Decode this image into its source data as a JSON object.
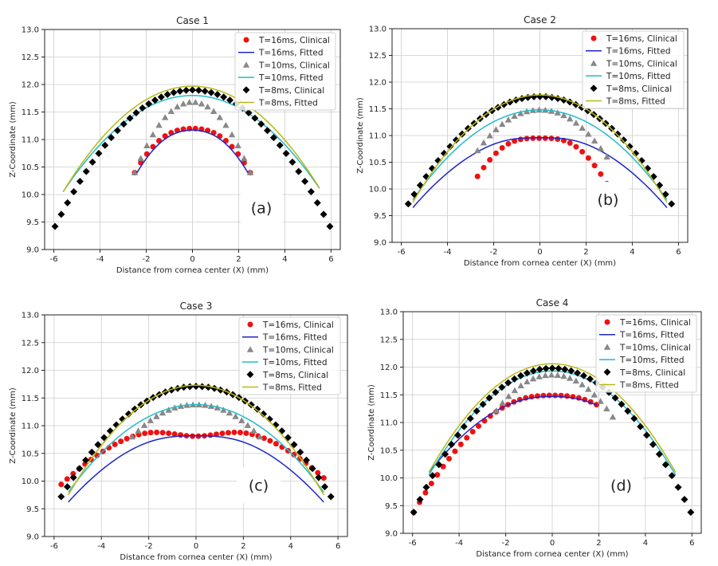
{
  "figure": {
    "panel_labels": [
      "(a)",
      "(b)",
      "(c)",
      "(d)"
    ]
  },
  "colors": {
    "clinical16": "#ee1111",
    "fitted16": "#1f25c8",
    "clinical10": "#888888",
    "fitted10": "#22bcc8",
    "clinical8": "#000000",
    "fitted8": "#b8b818",
    "grid": "#cccccc"
  },
  "legend_entries": [
    {
      "label": "T=16ms, Clinical",
      "kind": "marker",
      "marker": "circle",
      "color_key": "clinical16"
    },
    {
      "label": "T=16ms, Fitted",
      "kind": "line",
      "color_key": "fitted16"
    },
    {
      "label": "T=10ms, Clinical",
      "kind": "marker",
      "marker": "triangle",
      "color_key": "clinical10"
    },
    {
      "label": "T=10ms, Fitted",
      "kind": "line",
      "color_key": "fitted10"
    },
    {
      "label": "T=8ms, Clinical",
      "kind": "marker",
      "marker": "diamond",
      "color_key": "clinical8"
    },
    {
      "label": "T=8ms, Fitted",
      "kind": "line",
      "color_key": "fitted8"
    }
  ],
  "chart_data": [
    {
      "type": "line",
      "title": "Case 1",
      "xlabel": "Distance from cornea center (X) (mm)",
      "ylabel": "Z-Coordinate (mm)",
      "xlim": [
        -6.4,
        6.4
      ],
      "ylim": [
        9.0,
        13.0
      ],
      "xticks": [
        -6,
        -4,
        -2,
        0,
        2,
        4,
        6
      ],
      "yticks": [
        9.0,
        9.5,
        10.0,
        10.5,
        11.0,
        11.5,
        12.0,
        12.5,
        13.0
      ],
      "grid": true,
      "legend_position": "top-right",
      "series": [
        {
          "name": "T=16ms, Clinical",
          "style": "clinical16",
          "profile": {
            "x_start": -2.5,
            "x_end": 2.5,
            "n": 20,
            "top": 11.32,
            "edge": 10.4,
            "dip": 0.12,
            "dip_w": 0.9
          }
        },
        {
          "name": "T=16ms, Fitted",
          "style": "fitted16",
          "profile": {
            "x_start": -2.4,
            "x_end": 2.4,
            "n": 60,
            "top": 11.25,
            "edge": 10.4,
            "dip": 0.08,
            "dip_w": 0.9
          }
        },
        {
          "name": "T=10ms, Clinical",
          "style": "clinical10",
          "profile": {
            "x_start": -2.5,
            "x_end": 2.5,
            "n": 20,
            "top": 11.7,
            "edge": 10.4,
            "dip": 0.02,
            "dip_w": 0.8
          }
        },
        {
          "name": "T=10ms, Fitted",
          "style": "fitted10",
          "profile": {
            "x_start": -5.6,
            "x_end": 5.5,
            "n": 60,
            "top": 11.8,
            "edge": 10.05,
            "dip": 0.0,
            "dip_w": 1.0
          }
        },
        {
          "name": "T=8ms, Clinical",
          "style": "clinical8",
          "profile": {
            "x_start": -5.95,
            "x_end": 5.95,
            "n": 45,
            "top": 11.9,
            "edge": 9.42,
            "dip": 0.0,
            "dip_w": 1.0
          }
        },
        {
          "name": "T=8ms, Fitted",
          "style": "fitted8",
          "profile": {
            "x_start": -5.6,
            "x_end": 5.5,
            "n": 60,
            "top": 11.97,
            "edge": 10.05,
            "dip": 0.0,
            "dip_w": 1.0
          }
        }
      ]
    },
    {
      "type": "line",
      "title": "Case 2",
      "xlabel": "Distance from cornea center (X) (mm)",
      "ylabel": "Z-Coordinate (mm)",
      "xlim": [
        -6.4,
        6.4
      ],
      "ylim": [
        9.0,
        13.0
      ],
      "xticks": [
        -6,
        -4,
        -2,
        0,
        2,
        4,
        6
      ],
      "yticks": [
        9.0,
        9.5,
        10.0,
        10.5,
        11.0,
        11.5,
        12.0,
        12.5,
        13.0
      ],
      "grid": true,
      "legend_position": "top-right",
      "series": [
        {
          "name": "T=16ms, Clinical",
          "style": "clinical16",
          "profile": {
            "x_start": -2.7,
            "x_end": 2.9,
            "n": 22,
            "top": 11.13,
            "edge": 10.1,
            "dip": 0.18,
            "dip_w": 0.9
          }
        },
        {
          "name": "T=16ms, Fitted",
          "style": "fitted16",
          "profile": {
            "x_start": -5.5,
            "x_end": 5.5,
            "n": 60,
            "top": 11.03,
            "edge": 9.65,
            "dip": 0.07,
            "dip_w": 1.0
          }
        },
        {
          "name": "T=10ms, Clinical",
          "style": "clinical10",
          "profile": {
            "x_start": -2.7,
            "x_end": 2.9,
            "n": 22,
            "top": 11.5,
            "edge": 10.6,
            "dip": 0.02,
            "dip_w": 0.8
          }
        },
        {
          "name": "T=10ms, Fitted",
          "style": "fitted10",
          "profile": {
            "x_start": -5.5,
            "x_end": 5.5,
            "n": 60,
            "top": 11.48,
            "edge": 9.8,
            "dip": 0.0,
            "dip_w": 1.0
          }
        },
        {
          "name": "T=8ms, Clinical",
          "style": "clinical8",
          "profile": {
            "x_start": -5.7,
            "x_end": 5.7,
            "n": 45,
            "top": 11.73,
            "edge": 9.72,
            "dip": 0.0,
            "dip_w": 1.0
          }
        },
        {
          "name": "T=8ms, Fitted",
          "style": "fitted8",
          "profile": {
            "x_start": -5.5,
            "x_end": 5.5,
            "n": 60,
            "top": 11.76,
            "edge": 9.75,
            "dip": 0.0,
            "dip_w": 1.0
          }
        }
      ]
    },
    {
      "type": "line",
      "title": "Case 3",
      "xlabel": "Distance from cornea center (X) (mm)",
      "ylabel": "Z-Coordinate (mm)",
      "xlim": [
        -6.4,
        6.4
      ],
      "ylim": [
        9.0,
        13.0
      ],
      "xticks": [
        -6,
        -4,
        -2,
        0,
        2,
        4,
        6
      ],
      "yticks": [
        9.0,
        9.5,
        10.0,
        10.5,
        11.0,
        11.5,
        12.0,
        12.5,
        13.0
      ],
      "grid": true,
      "legend_position": "top-right",
      "series": [
        {
          "name": "T=16ms, Clinical",
          "style": "clinical16",
          "profile": {
            "x_start": -5.7,
            "x_end": 5.4,
            "n": 45,
            "top": 11.08,
            "edge": 9.94,
            "dip": 0.27,
            "dip_w": 1.2
          }
        },
        {
          "name": "T=16ms, Fitted",
          "style": "fitted16",
          "profile": {
            "x_start": -5.4,
            "x_end": 5.4,
            "n": 60,
            "top": 10.9,
            "edge": 9.62,
            "dip": 0.08,
            "dip_w": 1.2
          }
        },
        {
          "name": "T=10ms, Clinical",
          "style": "clinical10",
          "profile": {
            "x_start": -2.7,
            "x_end": 2.7,
            "n": 22,
            "top": 11.4,
            "edge": 10.8,
            "dip": 0.02,
            "dip_w": 0.8
          }
        },
        {
          "name": "T=10ms, Fitted",
          "style": "fitted10",
          "profile": {
            "x_start": -5.4,
            "x_end": 5.4,
            "n": 60,
            "top": 11.38,
            "edge": 9.8,
            "dip": 0.0,
            "dip_w": 1.0
          }
        },
        {
          "name": "T=8ms, Clinical",
          "style": "clinical8",
          "profile": {
            "x_start": -5.7,
            "x_end": 5.7,
            "n": 45,
            "top": 11.71,
            "edge": 9.72,
            "dip": 0.0,
            "dip_w": 1.0
          }
        },
        {
          "name": "T=8ms, Fitted",
          "style": "fitted8",
          "profile": {
            "x_start": -5.4,
            "x_end": 5.4,
            "n": 60,
            "top": 11.73,
            "edge": 9.75,
            "dip": 0.0,
            "dip_w": 1.0
          }
        }
      ]
    },
    {
      "type": "line",
      "title": "Case 4",
      "xlabel": "Distance from cornea center (X) (mm)",
      "ylabel": "Z-Coordinate (mm)",
      "xlim": [
        -6.4,
        6.4
      ],
      "ylim": [
        9.0,
        13.0
      ],
      "xticks": [
        -6,
        -4,
        -2,
        0,
        2,
        4,
        6
      ],
      "yticks": [
        9.0,
        9.5,
        10.0,
        10.5,
        11.0,
        11.5,
        12.0,
        12.5,
        13.0
      ],
      "grid": true,
      "legend_position": "top-right",
      "series": [
        {
          "name": "T=16ms, Clinical",
          "style": "clinical16",
          "profile": {
            "x_start": -5.95,
            "x_end": 1.9,
            "n": 32,
            "top": 11.55,
            "edge": 9.38,
            "dip": 0.06,
            "dip_w": 0.9
          }
        },
        {
          "name": "T=16ms, Fitted",
          "style": "fitted16",
          "profile": {
            "x_start": -5.3,
            "x_end": 1.9,
            "n": 50,
            "top": 11.5,
            "edge": 10.1,
            "dip": 0.03,
            "dip_w": 0.9
          }
        },
        {
          "name": "T=10ms, Clinical",
          "style": "clinical10",
          "profile": {
            "x_start": -2.4,
            "x_end": 2.6,
            "n": 20,
            "top": 11.88,
            "edge": 11.1,
            "dip": 0.02,
            "dip_w": 0.8
          }
        },
        {
          "name": "T=10ms, Fitted",
          "style": "fitted10",
          "profile": {
            "x_start": -5.3,
            "x_end": 5.3,
            "n": 60,
            "top": 11.93,
            "edge": 10.05,
            "dip": 0.0,
            "dip_w": 1.0
          }
        },
        {
          "name": "T=8ms, Clinical",
          "style": "clinical8",
          "profile": {
            "x_start": -5.95,
            "x_end": 5.95,
            "n": 45,
            "top": 11.98,
            "edge": 9.38,
            "dip": 0.0,
            "dip_w": 1.0
          }
        },
        {
          "name": "T=8ms, Fitted",
          "style": "fitted8",
          "profile": {
            "x_start": -5.3,
            "x_end": 5.3,
            "n": 60,
            "top": 12.06,
            "edge": 10.1,
            "dip": 0.0,
            "dip_w": 1.0
          }
        }
      ]
    }
  ]
}
